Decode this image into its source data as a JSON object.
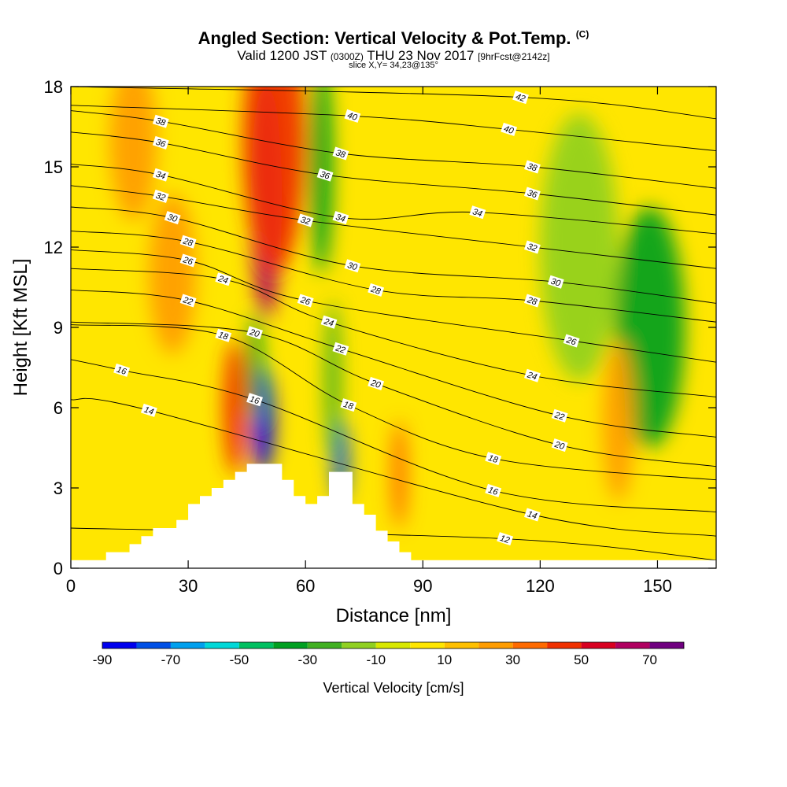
{
  "title": {
    "main": "Angled Section: Vertical Velocity & Pot.Temp.",
    "mark": "(C)",
    "valid_prefix": "Valid 1200 JST",
    "utc": "(0300Z)",
    "date": "THU 23 Nov 2017",
    "fcst": "[9hrFcst@2142z]",
    "slice": "slice X,Y= 34,23@135°"
  },
  "chart_data": {
    "type": "heatmap",
    "title": "Angled Section: Vertical Velocity & Pot.Temp.",
    "xlabel": "Distance [nm]",
    "ylabel": "Height [Kft MSL]",
    "xlim": [
      0,
      165
    ],
    "ylim": [
      0,
      18
    ],
    "x_ticks": [
      0,
      30,
      60,
      90,
      120,
      150
    ],
    "y_ticks": [
      0,
      3,
      6,
      9,
      12,
      15,
      18
    ],
    "grid": false,
    "colorbar": {
      "label": "Vertical Velocity [cm/s]",
      "tick_labels": [
        "-90",
        "-70",
        "-50",
        "-30",
        "-10",
        "10",
        "30",
        "50",
        "70"
      ],
      "tick_values": [
        -90,
        -70,
        -50,
        -30,
        -10,
        10,
        30,
        50,
        70
      ],
      "bins": [
        {
          "from": -90,
          "to": -80,
          "color": "#0000ee"
        },
        {
          "from": -80,
          "to": -70,
          "color": "#0050e6"
        },
        {
          "from": -70,
          "to": -60,
          "color": "#00a0ee"
        },
        {
          "from": -60,
          "to": -50,
          "color": "#00d8d8"
        },
        {
          "from": -50,
          "to": -40,
          "color": "#00c060"
        },
        {
          "from": -40,
          "to": -30,
          "color": "#00a020"
        },
        {
          "from": -30,
          "to": -20,
          "color": "#40b020"
        },
        {
          "from": -20,
          "to": -10,
          "color": "#90d020"
        },
        {
          "from": -10,
          "to": 0,
          "color": "#d8e800"
        },
        {
          "from": 0,
          "to": 10,
          "color": "#ffe600"
        },
        {
          "from": 10,
          "to": 20,
          "color": "#ffc000"
        },
        {
          "from": 20,
          "to": 30,
          "color": "#ff9c00"
        },
        {
          "from": 30,
          "to": 40,
          "color": "#ff6a00"
        },
        {
          "from": 40,
          "to": 50,
          "color": "#f03000"
        },
        {
          "from": 50,
          "to": 60,
          "color": "#d80020"
        },
        {
          "from": 60,
          "to": 70,
          "color": "#b00060"
        },
        {
          "from": 70,
          "to": 80,
          "color": "#700080"
        }
      ]
    },
    "terrain": [
      [
        0,
        0.3
      ],
      [
        9,
        0.3
      ],
      [
        9,
        0.6
      ],
      [
        15,
        0.6
      ],
      [
        15,
        0.9
      ],
      [
        18,
        0.9
      ],
      [
        18,
        1.2
      ],
      [
        21,
        1.2
      ],
      [
        21,
        1.5
      ],
      [
        27,
        1.5
      ],
      [
        27,
        1.8
      ],
      [
        30,
        1.8
      ],
      [
        30,
        2.4
      ],
      [
        33,
        2.4
      ],
      [
        33,
        2.7
      ],
      [
        36,
        2.7
      ],
      [
        36,
        3.0
      ],
      [
        39,
        3.0
      ],
      [
        39,
        3.3
      ],
      [
        42,
        3.3
      ],
      [
        42,
        3.6
      ],
      [
        45,
        3.6
      ],
      [
        45,
        3.9
      ],
      [
        54,
        3.9
      ],
      [
        54,
        3.3
      ],
      [
        57,
        3.3
      ],
      [
        57,
        2.7
      ],
      [
        60,
        2.7
      ],
      [
        60,
        2.4
      ],
      [
        63,
        2.4
      ],
      [
        63,
        2.7
      ],
      [
        66,
        2.7
      ],
      [
        66,
        3.6
      ],
      [
        72,
        3.6
      ],
      [
        72,
        2.4
      ],
      [
        75,
        2.4
      ],
      [
        75,
        2.0
      ],
      [
        78,
        2.0
      ],
      [
        78,
        1.4
      ],
      [
        81,
        1.4
      ],
      [
        81,
        1.0
      ],
      [
        84,
        1.0
      ],
      [
        84,
        0.6
      ],
      [
        87,
        0.6
      ],
      [
        87,
        0.3
      ],
      [
        165,
        0.3
      ]
    ],
    "wv_features": [
      {
        "x": 50,
        "y": 13.8,
        "rx": 4,
        "ry": 4.5,
        "value": 65
      },
      {
        "x": 52,
        "y": 16.0,
        "rx": 8,
        "ry": 5,
        "value": 45
      },
      {
        "x": 42,
        "y": 6.0,
        "rx": 3,
        "ry": 2.5,
        "value": 40
      },
      {
        "x": 49,
        "y": 5.5,
        "rx": 3,
        "ry": 2.0,
        "value": -85
      },
      {
        "x": 47,
        "y": 7.5,
        "rx": 2,
        "ry": 2.0,
        "value": -40
      },
      {
        "x": 69,
        "y": 4.0,
        "rx": 2,
        "ry": 1.5,
        "value": -75
      },
      {
        "x": 67,
        "y": 7.0,
        "rx": 2,
        "ry": 3.0,
        "value": -30
      },
      {
        "x": 64,
        "y": 15.0,
        "rx": 3,
        "ry": 4.0,
        "value": -35
      },
      {
        "x": 84,
        "y": 3.5,
        "rx": 2,
        "ry": 2.0,
        "value": 35
      },
      {
        "x": 148,
        "y": 9.0,
        "rx": 9,
        "ry": 4.5,
        "value": -35
      },
      {
        "x": 130,
        "y": 12.0,
        "rx": 10,
        "ry": 5.0,
        "value": -15
      },
      {
        "x": 26,
        "y": 11.0,
        "rx": 6,
        "ry": 3.0,
        "value": 25
      },
      {
        "x": 16,
        "y": 16.0,
        "rx": 6,
        "ry": 3.0,
        "value": 25
      },
      {
        "x": 140,
        "y": 5.5,
        "rx": 4,
        "ry": 3.0,
        "value": 25
      }
    ],
    "isentropes": [
      {
        "level": 12,
        "label_x": 111,
        "label_y": 1.1
      },
      {
        "level": 14,
        "label_x": 118,
        "label_y": 2.0
      },
      {
        "level": 14,
        "label_x": 20,
        "label_y": 5.9
      },
      {
        "level": 16,
        "label_x": 108,
        "label_y": 2.9
      },
      {
        "level": 16,
        "label_x": 13,
        "label_y": 7.4
      },
      {
        "level": 16,
        "label_x": 47,
        "label_y": 6.3
      },
      {
        "level": 18,
        "label_x": 108,
        "label_y": 4.1
      },
      {
        "level": 18,
        "label_x": 39,
        "label_y": 8.7
      },
      {
        "level": 18,
        "label_x": 71,
        "label_y": 6.1
      },
      {
        "level": 20,
        "label_x": 125,
        "label_y": 4.6
      },
      {
        "level": 20,
        "label_x": 47,
        "label_y": 8.8
      },
      {
        "level": 20,
        "label_x": 78,
        "label_y": 6.9
      },
      {
        "level": 22,
        "label_x": 125,
        "label_y": 5.7
      },
      {
        "level": 22,
        "label_x": 30,
        "label_y": 10.0
      },
      {
        "level": 22,
        "label_x": 69,
        "label_y": 8.2
      },
      {
        "level": 24,
        "label_x": 118,
        "label_y": 7.2
      },
      {
        "level": 24,
        "label_x": 39,
        "label_y": 10.8
      },
      {
        "level": 24,
        "label_x": 66,
        "label_y": 9.2
      },
      {
        "level": 26,
        "label_x": 128,
        "label_y": 8.5
      },
      {
        "level": 26,
        "label_x": 30,
        "label_y": 11.5
      },
      {
        "level": 26,
        "label_x": 60,
        "label_y": 10.0
      },
      {
        "level": 28,
        "label_x": 118,
        "label_y": 10.0
      },
      {
        "level": 28,
        "label_x": 30,
        "label_y": 12.2
      },
      {
        "level": 28,
        "label_x": 78,
        "label_y": 10.4
      },
      {
        "level": 30,
        "label_x": 124,
        "label_y": 10.7
      },
      {
        "level": 30,
        "label_x": 26,
        "label_y": 13.1
      },
      {
        "level": 30,
        "label_x": 72,
        "label_y": 11.3
      },
      {
        "level": 32,
        "label_x": 118,
        "label_y": 12.0
      },
      {
        "level": 32,
        "label_x": 23,
        "label_y": 13.9
      },
      {
        "level": 32,
        "label_x": 60,
        "label_y": 13.0
      },
      {
        "level": 34,
        "label_x": 104,
        "label_y": 13.3
      },
      {
        "level": 34,
        "label_x": 23,
        "label_y": 14.7
      },
      {
        "level": 34,
        "label_x": 69,
        "label_y": 13.1
      },
      {
        "level": 36,
        "label_x": 118,
        "label_y": 14.0
      },
      {
        "level": 36,
        "label_x": 23,
        "label_y": 15.9
      },
      {
        "level": 36,
        "label_x": 65,
        "label_y": 14.7
      },
      {
        "level": 38,
        "label_x": 118,
        "label_y": 15.0
      },
      {
        "level": 38,
        "label_x": 23,
        "label_y": 16.7
      },
      {
        "level": 38,
        "label_x": 69,
        "label_y": 15.5
      },
      {
        "level": 40,
        "label_x": 112,
        "label_y": 16.4
      },
      {
        "level": 40,
        "label_x": 72,
        "label_y": 16.9
      },
      {
        "level": 42,
        "label_x": 115,
        "label_y": 17.6
      }
    ]
  }
}
